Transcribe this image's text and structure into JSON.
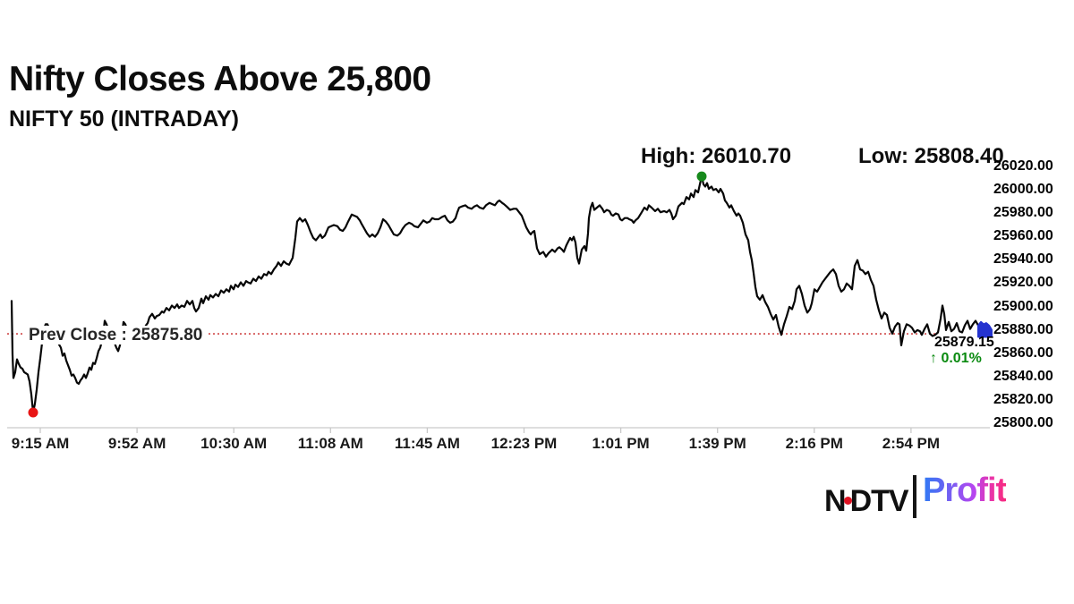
{
  "header": {
    "title": "Nifty Closes Above 25,800",
    "subtitle": "NIFTY 50 (INTRADAY)"
  },
  "branding": {
    "network": "NDTV",
    "product": "Profit"
  },
  "chart_data": {
    "type": "line",
    "title": "Nifty Closes Above 25,800",
    "series_name": "NIFTY 50 (INTRADAY)",
    "high_label": "High: 26010.70",
    "low_label": "Low: 25808.40",
    "prev_close_label": "Prev Close : 25875.80",
    "last_price_label": "25879.15",
    "change_label": "↑ 0.01%",
    "high": 26010.7,
    "low": 25808.4,
    "prev_close": 25875.8,
    "last_price": 25879.15,
    "ylim": [
      25800,
      26020
    ],
    "grid": false,
    "y_axis_side": "right",
    "y_tick_values": [
      26020,
      26000,
      25980,
      25960,
      25940,
      25920,
      25900,
      25880,
      25860,
      25840,
      25820,
      25800
    ],
    "y_tick_labels": [
      "26020.00",
      "26000.00",
      "25980.00",
      "25960.00",
      "25940.00",
      "25920.00",
      "25900.00",
      "25880.00",
      "25860.00",
      "25840.00",
      "25820.00",
      "25800.00"
    ],
    "x_tick_labels": [
      "9:15 AM",
      "9:52 AM",
      "10:30 AM",
      "11:08 AM",
      "11:45 AM",
      "12:23 PM",
      "1:01 PM",
      "1:39 PM",
      "2:16 PM",
      "2:54 PM"
    ],
    "colors": {
      "line": "#060606",
      "high_marker": "#178a1c",
      "low_marker": "#e81515",
      "prev_close_line": "#d04848",
      "change_text": "#0a8a10",
      "close_marker": "#2433cf",
      "axis": "#c9c9c9"
    },
    "points": [
      [
        13,
        25904
      ],
      [
        14,
        25858
      ],
      [
        15,
        25838
      ],
      [
        17,
        25843
      ],
      [
        19,
        25854
      ],
      [
        21,
        25850
      ],
      [
        23,
        25847
      ],
      [
        25,
        25846
      ],
      [
        27,
        25843
      ],
      [
        29,
        25842
      ],
      [
        31,
        25841
      ],
      [
        33,
        25835
      ],
      [
        35,
        25824
      ],
      [
        37,
        25808.4
      ],
      [
        39,
        25816
      ],
      [
        41,
        25828
      ],
      [
        43,
        25843
      ],
      [
        45,
        25855
      ],
      [
        47,
        25868
      ],
      [
        49,
        25880
      ],
      [
        51,
        25884
      ],
      [
        53,
        25884
      ],
      [
        56,
        25879
      ],
      [
        59,
        25874
      ],
      [
        62,
        25871
      ],
      [
        65,
        25868
      ],
      [
        68,
        25864
      ],
      [
        70,
        25857
      ],
      [
        72,
        25859
      ],
      [
        74,
        25853
      ],
      [
        76,
        25849
      ],
      [
        78,
        25845
      ],
      [
        80,
        25840
      ],
      [
        82,
        25841
      ],
      [
        84,
        25838
      ],
      [
        86,
        25834
      ],
      [
        88,
        25833
      ],
      [
        90,
        25836
      ],
      [
        92,
        25838
      ],
      [
        94,
        25841
      ],
      [
        96,
        25838
      ],
      [
        98,
        25842
      ],
      [
        100,
        25847
      ],
      [
        102,
        25845
      ],
      [
        104,
        25851
      ],
      [
        106,
        25850
      ],
      [
        108,
        25855
      ],
      [
        110,
        25861
      ],
      [
        112,
        25864
      ],
      [
        114,
        25870
      ],
      [
        116,
        25880
      ],
      [
        117,
        25887
      ],
      [
        119,
        25884
      ],
      [
        121,
        25880
      ],
      [
        124,
        25876
      ],
      [
        127,
        25870
      ],
      [
        130,
        25864
      ],
      [
        132,
        25861
      ],
      [
        134,
        25866
      ],
      [
        136,
        25874
      ],
      [
        138,
        25886
      ],
      [
        140,
        25884
      ],
      [
        143,
        25878
      ],
      [
        146,
        25874
      ],
      [
        149,
        25876
      ],
      [
        152,
        25873
      ],
      [
        155,
        25874
      ],
      [
        158,
        25877
      ],
      [
        161,
        25880
      ],
      [
        163,
        25883
      ],
      [
        165,
        25885
      ],
      [
        167,
        25890
      ],
      [
        170,
        25893
      ],
      [
        173,
        25889
      ],
      [
        175,
        25891
      ],
      [
        178,
        25892
      ],
      [
        181,
        25895
      ],
      [
        183,
        25894
      ],
      [
        186,
        25898
      ],
      [
        189,
        25896
      ],
      [
        192,
        25900
      ],
      [
        195,
        25898
      ],
      [
        198,
        25901
      ],
      [
        200,
        25898
      ],
      [
        203,
        25900
      ],
      [
        206,
        25899
      ],
      [
        209,
        25904
      ],
      [
        212,
        25901
      ],
      [
        215,
        25904
      ],
      [
        217,
        25898
      ],
      [
        219,
        25895
      ],
      [
        222,
        25898
      ],
      [
        225,
        25906
      ],
      [
        227,
        25902
      ],
      [
        230,
        25908
      ],
      [
        233,
        25905
      ],
      [
        235,
        25909
      ],
      [
        238,
        25907
      ],
      [
        241,
        25910
      ],
      [
        244,
        25908
      ],
      [
        247,
        25913
      ],
      [
        250,
        25911
      ],
      [
        253,
        25914
      ],
      [
        256,
        25912
      ],
      [
        258,
        25917
      ],
      [
        261,
        25914
      ],
      [
        263,
        25918
      ],
      [
        266,
        25916
      ],
      [
        269,
        25920
      ],
      [
        272,
        25917
      ],
      [
        275,
        25921
      ],
      [
        277,
        25920
      ],
      [
        280,
        25919
      ],
      [
        283,
        25923
      ],
      [
        286,
        25921
      ],
      [
        289,
        25925
      ],
      [
        292,
        25923
      ],
      [
        295,
        25927
      ],
      [
        298,
        25926
      ],
      [
        300,
        25929
      ],
      [
        303,
        25927
      ],
      [
        306,
        25931
      ],
      [
        309,
        25934
      ],
      [
        311,
        25937
      ],
      [
        314,
        25934
      ],
      [
        317,
        25938
      ],
      [
        320,
        25936
      ],
      [
        323,
        25935
      ],
      [
        325,
        25938
      ],
      [
        327,
        25941
      ],
      [
        330,
        25958
      ],
      [
        332,
        25972
      ],
      [
        335,
        25975
      ],
      [
        338,
        25972
      ],
      [
        341,
        25974
      ],
      [
        344,
        25969
      ],
      [
        347,
        25963
      ],
      [
        350,
        25958
      ],
      [
        353,
        25956
      ],
      [
        356,
        25959
      ],
      [
        358,
        25961
      ],
      [
        360,
        25958
      ],
      [
        363,
        25960
      ],
      [
        367,
        25967
      ],
      [
        370,
        25968
      ],
      [
        373,
        25969
      ],
      [
        377,
        25968
      ],
      [
        380,
        25965
      ],
      [
        383,
        25964
      ],
      [
        386,
        25967
      ],
      [
        389,
        25972
      ],
      [
        393,
        25978
      ],
      [
        396,
        25977
      ],
      [
        399,
        25976
      ],
      [
        402,
        25973
      ],
      [
        404,
        25970
      ],
      [
        407,
        25966
      ],
      [
        410,
        25962
      ],
      [
        413,
        25959
      ],
      [
        416,
        25961
      ],
      [
        419,
        25959
      ],
      [
        422,
        25962
      ],
      [
        425,
        25967
      ],
      [
        428,
        25974
      ],
      [
        431,
        25972
      ],
      [
        434,
        25969
      ],
      [
        437,
        25965
      ],
      [
        440,
        25961
      ],
      [
        444,
        25960
      ],
      [
        447,
        25962
      ],
      [
        450,
        25966
      ],
      [
        453,
        25969
      ],
      [
        457,
        25971
      ],
      [
        460,
        25970
      ],
      [
        463,
        25968
      ],
      [
        467,
        25967
      ],
      [
        470,
        25970
      ],
      [
        473,
        25973
      ],
      [
        477,
        25971
      ],
      [
        480,
        25972
      ],
      [
        483,
        25975
      ],
      [
        486,
        25974
      ],
      [
        490,
        25974
      ],
      [
        494,
        25976
      ],
      [
        497,
        25977
      ],
      [
        500,
        25973
      ],
      [
        503,
        25971
      ],
      [
        506,
        25972
      ],
      [
        509,
        25975
      ],
      [
        511,
        25980
      ],
      [
        513,
        25984
      ],
      [
        516,
        25985
      ],
      [
        520,
        25986
      ],
      [
        523,
        25984
      ],
      [
        527,
        25983
      ],
      [
        530,
        25985
      ],
      [
        533,
        25986
      ],
      [
        536,
        25984
      ],
      [
        540,
        25983
      ],
      [
        543,
        25986
      ],
      [
        547,
        25988
      ],
      [
        550,
        25987
      ],
      [
        553,
        25986
      ],
      [
        556,
        25989
      ],
      [
        558,
        25990
      ],
      [
        561,
        25988
      ],
      [
        563,
        25987
      ],
      [
        566,
        25985
      ],
      [
        570,
        25982
      ],
      [
        574,
        25983
      ],
      [
        577,
        25983
      ],
      [
        580,
        25980
      ],
      [
        583,
        25977
      ],
      [
        586,
        25971
      ],
      [
        588,
        25967
      ],
      [
        591,
        25963
      ],
      [
        593,
        25961
      ],
      [
        595,
        25963
      ],
      [
        597,
        25964
      ],
      [
        600,
        25949
      ],
      [
        603,
        25944
      ],
      [
        605,
        25945
      ],
      [
        607,
        25946
      ],
      [
        610,
        25942
      ],
      [
        613,
        25945
      ],
      [
        617,
        25948
      ],
      [
        620,
        25946
      ],
      [
        623,
        25949
      ],
      [
        625,
        25950
      ],
      [
        628,
        25948
      ],
      [
        630,
        25946
      ],
      [
        633,
        25952
      ],
      [
        635,
        25955
      ],
      [
        637,
        25958
      ],
      [
        639,
        25956
      ],
      [
        641,
        25959
      ],
      [
        643,
        25954
      ],
      [
        645,
        25941
      ],
      [
        647,
        25936
      ],
      [
        650,
        25948
      ],
      [
        653,
        25951
      ],
      [
        655,
        25947
      ],
      [
        657,
        25962
      ],
      [
        658,
        25975
      ],
      [
        660,
        25984
      ],
      [
        662,
        25988
      ],
      [
        664,
        25982
      ],
      [
        667,
        25984
      ],
      [
        670,
        25986
      ],
      [
        673,
        25983
      ],
      [
        675,
        25980
      ],
      [
        678,
        25982
      ],
      [
        681,
        25981
      ],
      [
        683,
        25978
      ],
      [
        685,
        25977
      ],
      [
        688,
        25979
      ],
      [
        691,
        25978
      ],
      [
        693,
        25974
      ],
      [
        695,
        25973
      ],
      [
        698,
        25975
      ],
      [
        701,
        25975
      ],
      [
        703,
        25974
      ],
      [
        706,
        25973
      ],
      [
        708,
        25971
      ],
      [
        710,
        25973
      ],
      [
        713,
        25975
      ],
      [
        717,
        25980
      ],
      [
        720,
        25984
      ],
      [
        723,
        25982
      ],
      [
        725,
        25986
      ],
      [
        728,
        25984
      ],
      [
        732,
        25981
      ],
      [
        735,
        25983
      ],
      [
        738,
        25980
      ],
      [
        742,
        25981
      ],
      [
        745,
        25980
      ],
      [
        748,
        25982
      ],
      [
        750,
        25979
      ],
      [
        752,
        25974
      ],
      [
        755,
        25977
      ],
      [
        758,
        25985
      ],
      [
        762,
        25988
      ],
      [
        764,
        25987
      ],
      [
        767,
        25993
      ],
      [
        770,
        25991
      ],
      [
        772,
        25996
      ],
      [
        775,
        25993
      ],
      [
        777,
        25999
      ],
      [
        780,
        25997
      ],
      [
        782,
        26004
      ],
      [
        784,
        26010.7
      ],
      [
        786,
        26004
      ],
      [
        788,
        26002
      ],
      [
        790,
        26005
      ],
      [
        792,
        26000
      ],
      [
        795,
        26002
      ],
      [
        797,
        25999
      ],
      [
        800,
        26000
      ],
      [
        803,
        25997
      ],
      [
        805,
        26000
      ],
      [
        808,
        25996
      ],
      [
        810,
        25990
      ],
      [
        812,
        25988
      ],
      [
        815,
        25984
      ],
      [
        817,
        25986
      ],
      [
        820,
        25981
      ],
      [
        823,
        25977
      ],
      [
        825,
        25979
      ],
      [
        827,
        25977
      ],
      [
        830,
        25971
      ],
      [
        833,
        25961
      ],
      [
        836,
        25956
      ],
      [
        838,
        25946
      ],
      [
        840,
        25939
      ],
      [
        842,
        25928
      ],
      [
        844,
        25916
      ],
      [
        846,
        25908
      ],
      [
        849,
        25905
      ],
      [
        852,
        25909
      ],
      [
        855,
        25903
      ],
      [
        858,
        25899
      ],
      [
        861,
        25893
      ],
      [
        864,
        25888
      ],
      [
        867,
        25892
      ],
      [
        870,
        25882
      ],
      [
        873,
        25875
      ],
      [
        876,
        25884
      ],
      [
        879,
        25891
      ],
      [
        882,
        25899
      ],
      [
        885,
        25897
      ],
      [
        888,
        25904
      ],
      [
        890,
        25914
      ],
      [
        893,
        25917
      ],
      [
        896,
        25910
      ],
      [
        899,
        25900
      ],
      [
        902,
        25894
      ],
      [
        905,
        25897
      ],
      [
        907,
        25902
      ],
      [
        910,
        25914
      ],
      [
        913,
        25912
      ],
      [
        916,
        25916
      ],
      [
        919,
        25920
      ],
      [
        922,
        25923
      ],
      [
        925,
        25926
      ],
      [
        928,
        25929
      ],
      [
        931,
        25931
      ],
      [
        934,
        25927
      ],
      [
        937,
        25917
      ],
      [
        940,
        25912
      ],
      [
        943,
        25914
      ],
      [
        946,
        25919
      ],
      [
        949,
        25917
      ],
      [
        952,
        25914
      ],
      [
        955,
        25934
      ],
      [
        958,
        25939
      ],
      [
        961,
        25931
      ],
      [
        964,
        25930
      ],
      [
        967,
        25927
      ],
      [
        970,
        25929
      ],
      [
        973,
        25922
      ],
      [
        976,
        25917
      ],
      [
        979,
        25905
      ],
      [
        982,
        25896
      ],
      [
        985,
        25889
      ],
      [
        988,
        25894
      ],
      [
        991,
        25892
      ],
      [
        994,
        25881
      ],
      [
        997,
        25876
      ],
      [
        1000,
        25882
      ],
      [
        1003,
        25885
      ],
      [
        1005,
        25884
      ],
      [
        1007,
        25866
      ],
      [
        1010,
        25878
      ],
      [
        1013,
        25884
      ],
      [
        1016,
        25883
      ],
      [
        1019,
        25881
      ],
      [
        1022,
        25877
      ],
      [
        1025,
        25879
      ],
      [
        1028,
        25878
      ],
      [
        1030,
        25875
      ],
      [
        1033,
        25880
      ],
      [
        1036,
        25884
      ],
      [
        1039,
        25876
      ],
      [
        1042,
        25874
      ],
      [
        1045,
        25875
      ],
      [
        1048,
        25877
      ],
      [
        1051,
        25889
      ],
      [
        1053,
        25900
      ],
      [
        1055,
        25893
      ],
      [
        1057,
        25879
      ],
      [
        1060,
        25886
      ],
      [
        1063,
        25878
      ],
      [
        1066,
        25880
      ],
      [
        1069,
        25885
      ],
      [
        1072,
        25878
      ],
      [
        1075,
        25877
      ],
      [
        1078,
        25883
      ],
      [
        1081,
        25887
      ],
      [
        1084,
        25880
      ],
      [
        1087,
        25884
      ],
      [
        1090,
        25887
      ],
      [
        1093,
        25883
      ]
    ],
    "end_segment": [
      [
        1093,
        25883
      ],
      [
        1096,
        25886
      ],
      [
        1099,
        25884
      ],
      [
        1102,
        25885
      ],
      [
        1105,
        25883
      ],
      [
        1108,
        25879.15
      ]
    ]
  }
}
